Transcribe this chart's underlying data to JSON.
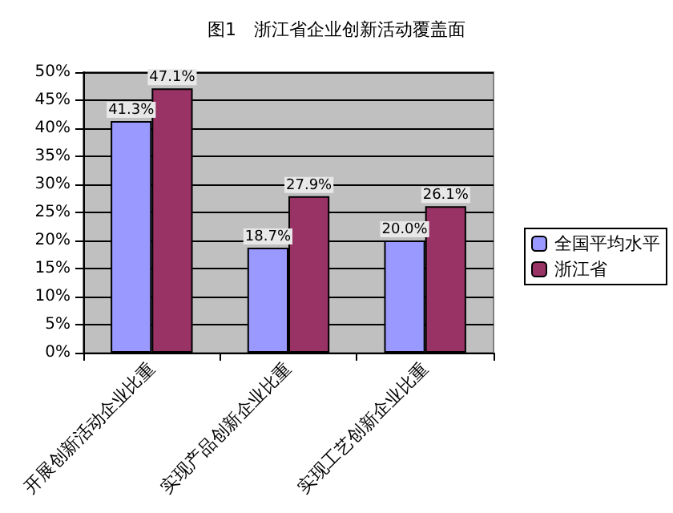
{
  "chart_data": {
    "type": "bar",
    "title": "图1　浙江省企业创新活动覆盖面",
    "categories": [
      "开展创新活动企业比重",
      "实现产品创新企业比重",
      "实现工艺创新企业比重"
    ],
    "series": [
      {
        "name": "全国平均水平",
        "color": "#9999ff",
        "values": [
          41.3,
          18.7,
          20.0
        ],
        "value_labels": [
          "41.3%",
          "18.7%",
          "20.0%"
        ]
      },
      {
        "name": "浙江省",
        "color": "#993366",
        "values": [
          47.1,
          27.9,
          26.1
        ],
        "value_labels": [
          "47.1%",
          "27.9%",
          "26.1%"
        ]
      }
    ],
    "ylim": [
      0,
      50
    ],
    "yticks": [
      {
        "value": 0,
        "label": "0%"
      },
      {
        "value": 5,
        "label": "5%"
      },
      {
        "value": 10,
        "label": "10%"
      },
      {
        "value": 15,
        "label": "15%"
      },
      {
        "value": 20,
        "label": "20%"
      },
      {
        "value": 25,
        "label": "25%"
      },
      {
        "value": 30,
        "label": "30%"
      },
      {
        "value": 35,
        "label": "35%"
      },
      {
        "value": 40,
        "label": "40%"
      },
      {
        "value": 45,
        "label": "45%"
      },
      {
        "value": 50,
        "label": "50%"
      }
    ],
    "grid": "y",
    "legend": "right"
  }
}
